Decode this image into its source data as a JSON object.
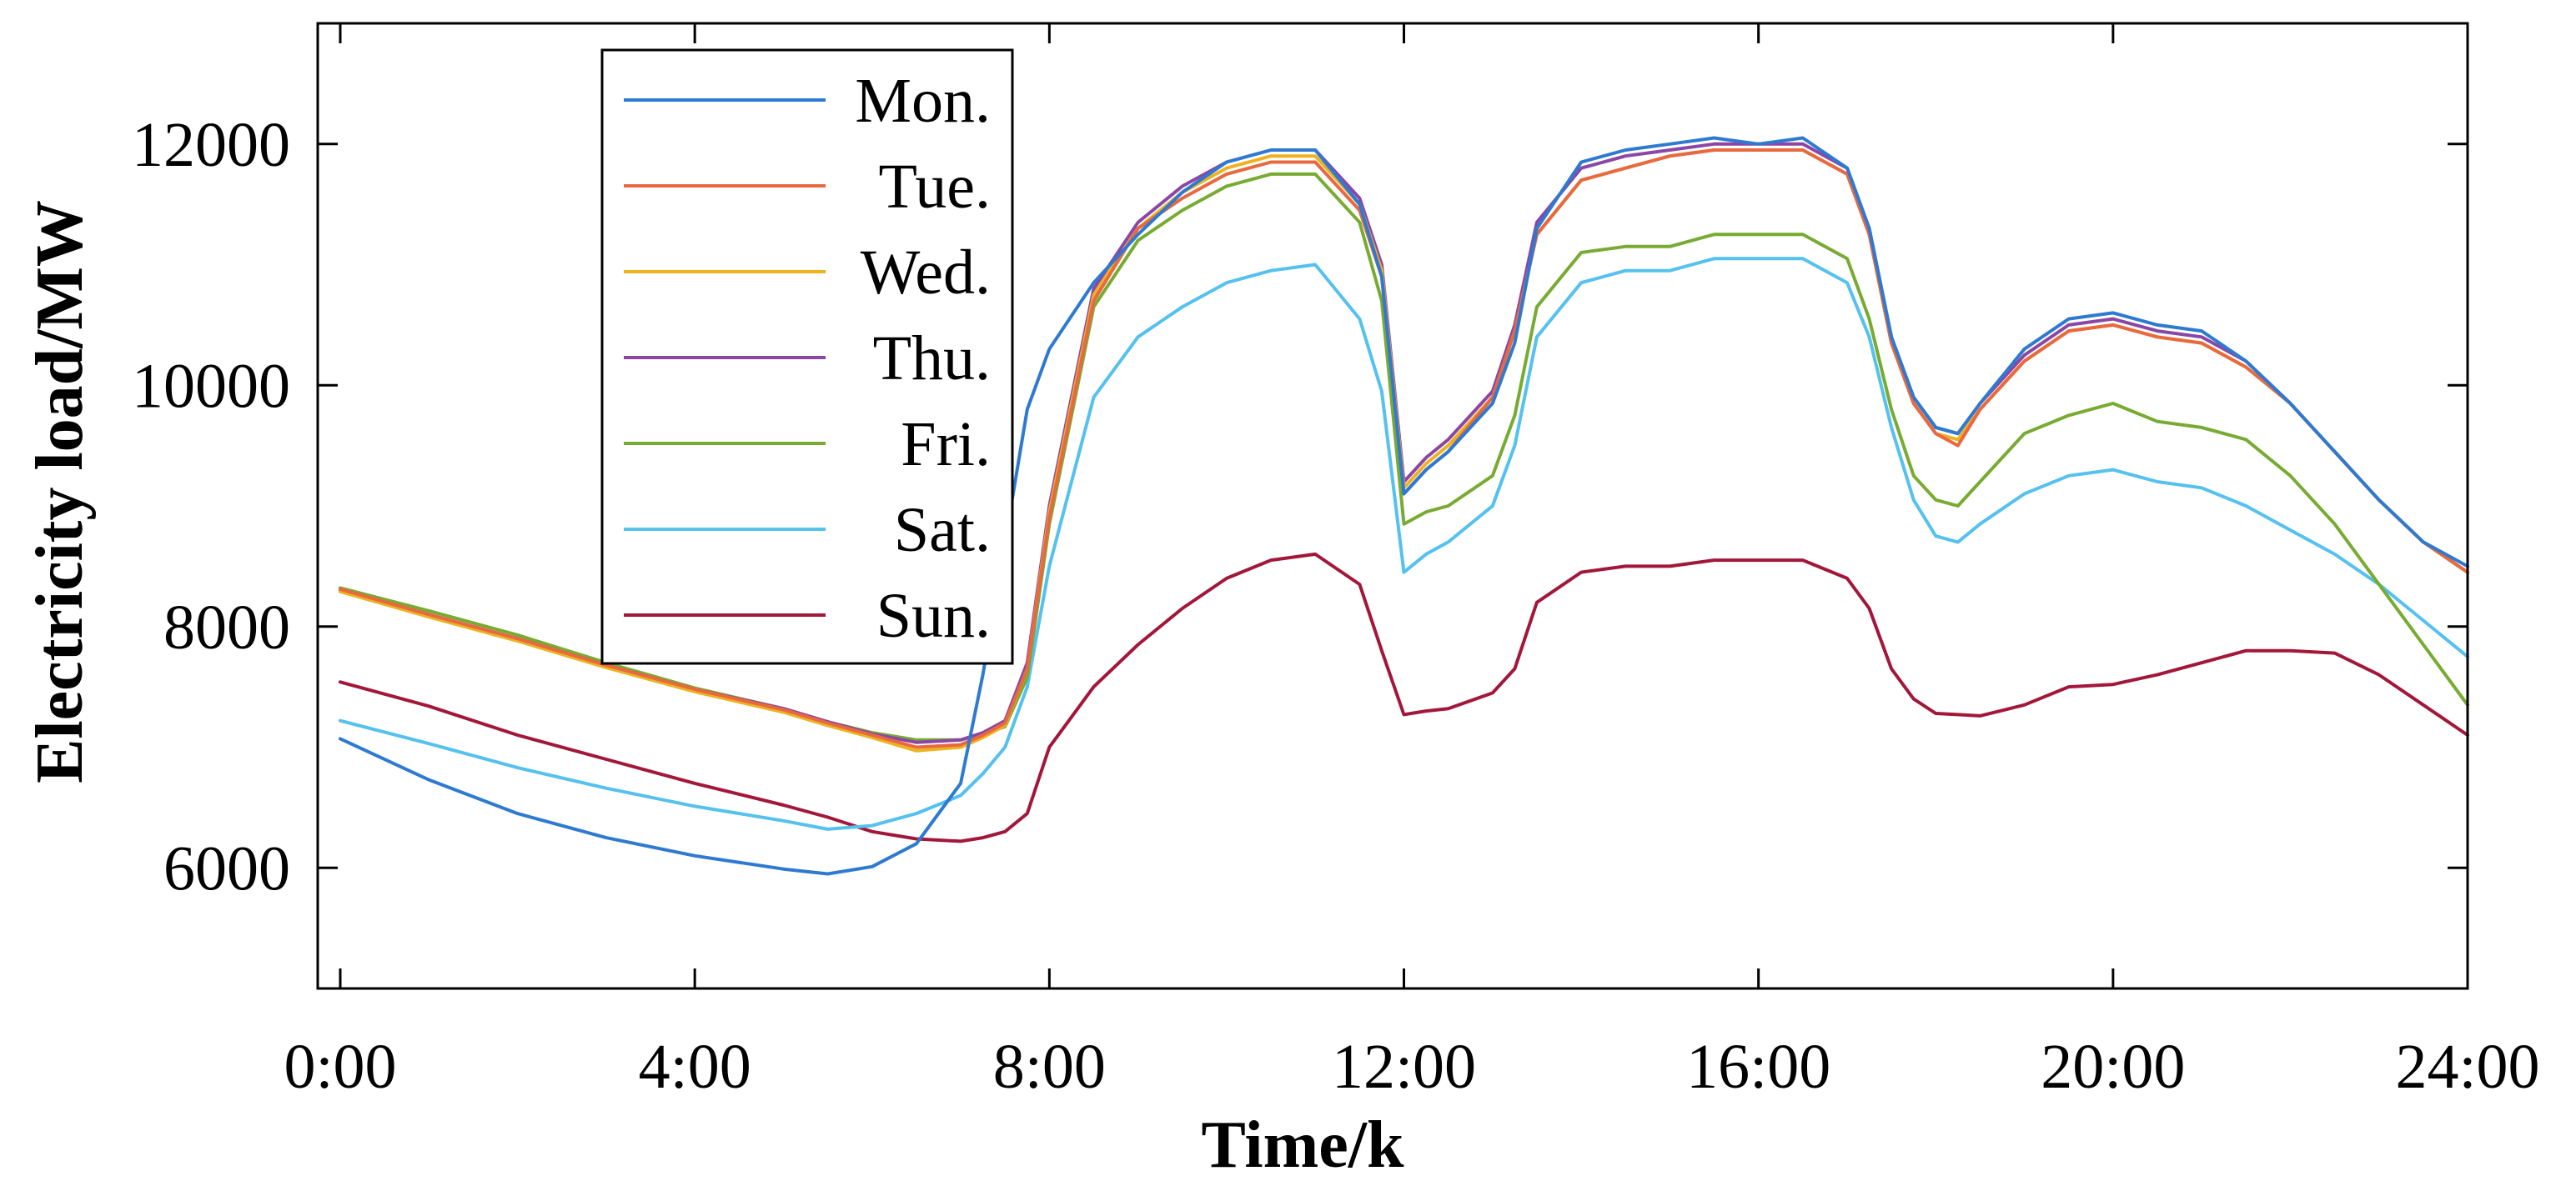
{
  "chart_data": {
    "type": "line",
    "title": "",
    "xlabel": "Time/k",
    "ylabel": "Electricity load/MW",
    "xlim": [
      0,
      96
    ],
    "ylim": [
      5000,
      13000
    ],
    "xticks": [
      0,
      16,
      32,
      48,
      64,
      80,
      96
    ],
    "xtick_labels": [
      "0:00",
      "4:00",
      "8:00",
      "12:00",
      "16:00",
      "20:00",
      "24:00"
    ],
    "yticks": [
      6000,
      8000,
      10000,
      12000
    ],
    "ytick_labels": [
      "6000",
      "8000",
      "10000",
      "12000"
    ],
    "grid": false,
    "legend_position": "top-left",
    "x": [
      0,
      4,
      8,
      12,
      16,
      20,
      22,
      24,
      26,
      28,
      29,
      30,
      31,
      32,
      34,
      36,
      38,
      40,
      42,
      44,
      46,
      47,
      48,
      49,
      50,
      52,
      53,
      54,
      56,
      58,
      60,
      62,
      64,
      66,
      68,
      69,
      70,
      71,
      72,
      73,
      74,
      76,
      78,
      80,
      82,
      84,
      86,
      88,
      90,
      92,
      94,
      96
    ],
    "series": [
      {
        "name": "Mon.",
        "color": "#2e7ad1",
        "values": [
          7070,
          6730,
          6450,
          6250,
          6100,
          5990,
          5950,
          6010,
          6200,
          6700,
          7600,
          8700,
          9800,
          10300,
          10850,
          11250,
          11600,
          11850,
          11950,
          11950,
          11500,
          10900,
          9100,
          9300,
          9450,
          9850,
          10350,
          11300,
          11850,
          11950,
          12000,
          12050,
          12000,
          12050,
          11800,
          11300,
          10400,
          9900,
          9650,
          9600,
          9850,
          10300,
          10550,
          10600,
          10500,
          10450,
          10200,
          9850,
          9450,
          9050,
          8700,
          8500
        ]
      },
      {
        "name": "Tue.",
        "color": "#e8693f",
        "values": [
          8310,
          8100,
          7900,
          7680,
          7480,
          7310,
          7200,
          7100,
          7000,
          7020,
          7100,
          7200,
          7650,
          8900,
          10700,
          11300,
          11550,
          11750,
          11850,
          11850,
          11450,
          10900,
          9100,
          9300,
          9450,
          9900,
          10450,
          11250,
          11700,
          11800,
          11900,
          11950,
          11950,
          11950,
          11750,
          11250,
          10350,
          9850,
          9600,
          9500,
          9800,
          10200,
          10450,
          10500,
          10400,
          10350,
          10150,
          9850,
          9450,
          9050,
          8700,
          8450
        ]
      },
      {
        "name": "Wed.",
        "color": "#eeb220",
        "values": [
          8290,
          8080,
          7880,
          7660,
          7460,
          7290,
          7180,
          7080,
          6970,
          7000,
          7080,
          7180,
          7650,
          8950,
          10750,
          11300,
          11600,
          11800,
          11900,
          11900,
          11500,
          10950,
          9150,
          9350,
          9500,
          9900,
          10450,
          11250,
          11700,
          11800,
          11900,
          11950,
          11950,
          11950,
          11750,
          11250,
          10350,
          9850,
          9600,
          9550,
          9800,
          10200,
          10450,
          10500,
          10400,
          10350,
          10150,
          9850,
          9450,
          9050,
          8700,
          8450
        ]
      },
      {
        "name": "Thu.",
        "color": "#8b47a6",
        "values": [
          8300,
          8100,
          7900,
          7680,
          7480,
          7320,
          7210,
          7110,
          7040,
          7060,
          7120,
          7220,
          7700,
          9000,
          10800,
          11350,
          11650,
          11850,
          11950,
          11950,
          11550,
          11000,
          9200,
          9400,
          9550,
          9950,
          10500,
          11350,
          11800,
          11900,
          11950,
          12000,
          12000,
          12000,
          11800,
          11300,
          10400,
          9900,
          9650,
          9600,
          9850,
          10250,
          10500,
          10550,
          10450,
          10400,
          10200,
          9850,
          9450,
          9050,
          8700,
          8450
        ]
      },
      {
        "name": "Fri.",
        "color": "#78ab32",
        "values": [
          8320,
          8130,
          7930,
          7700,
          7490,
          7320,
          7210,
          7120,
          7060,
          7060,
          7110,
          7170,
          7580,
          8850,
          10650,
          11200,
          11450,
          11650,
          11750,
          11750,
          11350,
          10700,
          8850,
          8950,
          9000,
          9250,
          9750,
          10650,
          11100,
          11150,
          11150,
          11250,
          11250,
          11250,
          11050,
          10550,
          9800,
          9250,
          9050,
          9000,
          9200,
          9600,
          9750,
          9850,
          9700,
          9650,
          9550,
          9250,
          8850,
          8350,
          7850,
          7350
        ]
      },
      {
        "name": "Sat.",
        "color": "#55c1ee",
        "values": [
          7220,
          7030,
          6830,
          6660,
          6510,
          6390,
          6320,
          6350,
          6450,
          6600,
          6780,
          7000,
          7500,
          8500,
          9900,
          10400,
          10650,
          10850,
          10950,
          11000,
          10550,
          9950,
          8450,
          8600,
          8700,
          9000,
          9500,
          10400,
          10850,
          10950,
          10950,
          11050,
          11050,
          11050,
          10850,
          10400,
          9650,
          9050,
          8750,
          8700,
          8850,
          9100,
          9250,
          9300,
          9200,
          9150,
          9000,
          8800,
          8600,
          8350,
          8050,
          7750
        ]
      },
      {
        "name": "Sun.",
        "color": "#a2173a",
        "values": [
          7540,
          7340,
          7100,
          6900,
          6700,
          6520,
          6420,
          6300,
          6240,
          6220,
          6250,
          6300,
          6450,
          7000,
          7500,
          7850,
          8150,
          8400,
          8550,
          8600,
          8350,
          7800,
          7270,
          7300,
          7320,
          7450,
          7650,
          8200,
          8450,
          8500,
          8500,
          8550,
          8550,
          8550,
          8400,
          8150,
          7650,
          7400,
          7280,
          7270,
          7260,
          7350,
          7500,
          7520,
          7600,
          7700,
          7800,
          7800,
          7780,
          7600,
          7350,
          7100
        ]
      }
    ]
  }
}
